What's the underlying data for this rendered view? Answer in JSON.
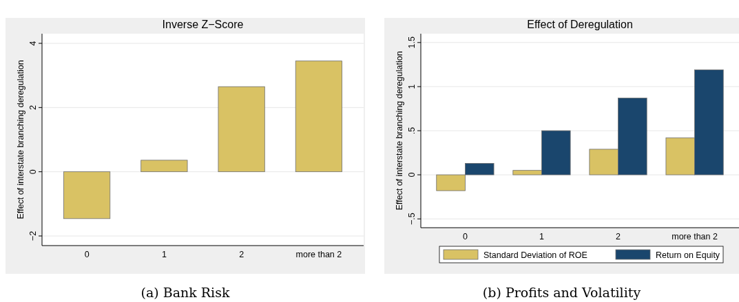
{
  "chart_data": [
    {
      "type": "bar",
      "title": "Inverse Z−Score",
      "ylabel": "Effect of interstate branching deregulation",
      "categories": [
        "0",
        "1",
        "2",
        "more than 2"
      ],
      "values": [
        -1.46,
        0.36,
        2.65,
        3.45
      ],
      "color": "#d9c264",
      "ylim": [
        -2.3,
        4.3
      ],
      "yticks": [
        {
          "value": -2,
          "label": "−2"
        },
        0,
        2,
        4
      ],
      "grid": "y",
      "annotations": [
        "(a) Bank Risk"
      ]
    },
    {
      "type": "bar",
      "title": "Effect of Deregulation",
      "ylabel": "Effect of interstate branching deregulation",
      "categories": [
        "0",
        "1",
        "2",
        "more than 2"
      ],
      "series": [
        {
          "name": "Standard Deviation of ROE",
          "color": "#d9c264",
          "values": [
            -0.18,
            0.05,
            0.29,
            0.42
          ]
        },
        {
          "name": "Return on Equity",
          "color": "#1a466d",
          "values": [
            0.13,
            0.5,
            0.87,
            1.19
          ]
        }
      ],
      "ylim": [
        -0.6,
        1.6
      ],
      "yticks": [
        {
          "value": -0.5,
          "label": "−.5"
        },
        0,
        {
          "value": 0.5,
          "label": ".5"
        },
        1,
        {
          "value": 1.5,
          "label": "1.5"
        }
      ],
      "grid": "y",
      "legend": "bottom",
      "annotations": [
        "(b) Profits and Volatility"
      ]
    }
  ]
}
